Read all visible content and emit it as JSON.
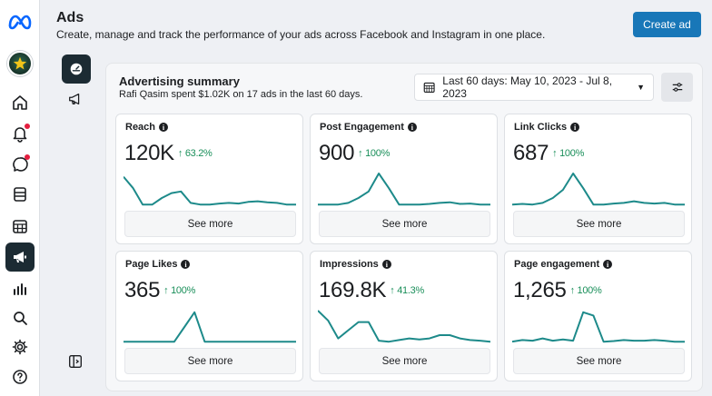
{
  "header": {
    "title": "Ads",
    "subtitle": "Create, manage and track the performance of your ads across Facebook and Instagram in one place.",
    "create_label": "Create ad"
  },
  "rail": {
    "items": [
      "home-icon",
      "bell-icon",
      "messenger-icon",
      "page-icon",
      "calendar-grid-icon",
      "megaphone-icon",
      "bar-chart-icon",
      "search-icon",
      "gear-icon",
      "help-icon"
    ]
  },
  "summary": {
    "title": "Advertising summary",
    "subtitle": "Rafi Qasim spent $1.02K on 17 ads in the last 60 days.",
    "date_range": "Last 60 days: May 10, 2023 - Jul 8, 2023"
  },
  "cards": [
    {
      "title": "Reach",
      "value": "120K",
      "change": "↑ 63.2%",
      "see_more": "See more",
      "trend": [
        0.1,
        0.45,
        0.95,
        0.95,
        0.75,
        0.6,
        0.55,
        0.9,
        0.95,
        0.95,
        0.92,
        0.9,
        0.92,
        0.87,
        0.85,
        0.88,
        0.9,
        0.95,
        0.95
      ]
    },
    {
      "title": "Post Engagement",
      "value": "900",
      "change": "↑ 100%",
      "see_more": "See more",
      "trend": [
        0.95,
        0.95,
        0.95,
        0.9,
        0.75,
        0.55,
        0.0,
        0.45,
        0.95,
        0.95,
        0.95,
        0.93,
        0.9,
        0.88,
        0.93,
        0.92,
        0.95,
        0.95
      ]
    },
    {
      "title": "Link Clicks",
      "value": "687",
      "change": "↑ 100%",
      "see_more": "See more",
      "trend": [
        0.95,
        0.93,
        0.95,
        0.9,
        0.75,
        0.5,
        0.0,
        0.45,
        0.95,
        0.95,
        0.92,
        0.9,
        0.85,
        0.9,
        0.92,
        0.9,
        0.95,
        0.95
      ]
    },
    {
      "title": "Page Likes",
      "value": "365",
      "change": "↑ 100%",
      "see_more": "See more",
      "trend": [
        0.95,
        0.95,
        0.95,
        0.95,
        0.95,
        0.95,
        0.5,
        0.05,
        0.95,
        0.95,
        0.95,
        0.95,
        0.95,
        0.95,
        0.95,
        0.95,
        0.95,
        0.95
      ]
    },
    {
      "title": "Impressions",
      "value": "169.8K",
      "change": "↑ 41.3%",
      "see_more": "See more",
      "trend": [
        0.0,
        0.3,
        0.85,
        0.6,
        0.35,
        0.35,
        0.92,
        0.95,
        0.9,
        0.85,
        0.88,
        0.85,
        0.75,
        0.75,
        0.85,
        0.9,
        0.92,
        0.95
      ]
    },
    {
      "title": "Page engagement",
      "value": "1,265",
      "change": "↑ 100%",
      "see_more": "See more",
      "trend": [
        0.95,
        0.9,
        0.92,
        0.85,
        0.92,
        0.88,
        0.92,
        0.05,
        0.15,
        0.95,
        0.93,
        0.9,
        0.92,
        0.92,
        0.9,
        0.92,
        0.95,
        0.95
      ]
    }
  ],
  "colors": {
    "accent": "#1877b8",
    "spark": "#1d8a8a",
    "positive": "#1a8f5a"
  }
}
